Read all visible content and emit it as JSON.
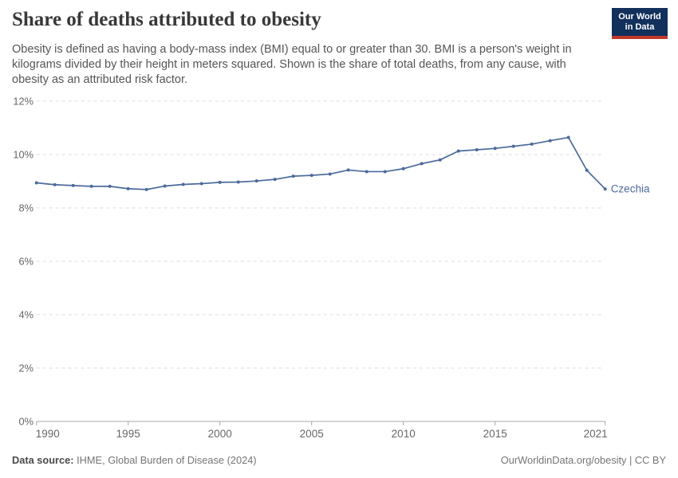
{
  "header": {
    "title": "Share of deaths attributed to obesity",
    "subtitle": "Obesity is defined as having a body-mass index (BMI) equal to or greater than 30. BMI is a person's weight in kilograms divided by their height in meters squared. Shown is the share of total deaths, from any cause, with obesity as an attributed risk factor.",
    "logo": {
      "line1": "Our World",
      "line2": "in Data"
    }
  },
  "chart_data": {
    "type": "line",
    "title": "Share of deaths attributed to obesity",
    "x": [
      1990,
      1991,
      1992,
      1993,
      1994,
      1995,
      1996,
      1997,
      1998,
      1999,
      2000,
      2001,
      2002,
      2003,
      2004,
      2005,
      2006,
      2007,
      2008,
      2009,
      2010,
      2011,
      2012,
      2013,
      2014,
      2015,
      2016,
      2017,
      2018,
      2019,
      2020,
      2021
    ],
    "series": [
      {
        "name": "Czechia",
        "color": "#4c6a9c",
        "values": [
          8.94,
          8.87,
          8.84,
          8.81,
          8.81,
          8.72,
          8.69,
          8.82,
          8.88,
          8.91,
          8.96,
          8.97,
          9.01,
          9.07,
          9.19,
          9.22,
          9.27,
          9.42,
          9.36,
          9.36,
          9.47,
          9.66,
          9.8,
          10.13,
          10.18,
          10.23,
          10.31,
          10.39,
          10.52,
          10.64,
          9.41,
          8.71
        ]
      }
    ],
    "xlabel": "",
    "ylabel": "",
    "ylim": [
      0,
      12
    ],
    "y_ticks": [
      0,
      2,
      4,
      6,
      8,
      10,
      12
    ],
    "y_tick_suffix": "%",
    "x_ticks": [
      1990,
      1995,
      2000,
      2005,
      2010,
      2015,
      2021
    ],
    "grid": "horizontal-dashed",
    "legend_position": "end-of-line-label",
    "entity_label": "Czechia"
  },
  "footer": {
    "source_label": "Data source:",
    "source_value": "IHME, Global Burden of Disease (2024)",
    "credit": "OurWorldinData.org/obesity | CC BY"
  },
  "colors": {
    "line": "#4c6a9c",
    "grid": "#dcdcdc",
    "axis": "#a8a8a8",
    "tick_label": "#666666",
    "title": "#383838",
    "subtitle": "#555555",
    "footer_text": "#757575",
    "logo_bg": "#12305c",
    "logo_accent": "#c0392b"
  }
}
